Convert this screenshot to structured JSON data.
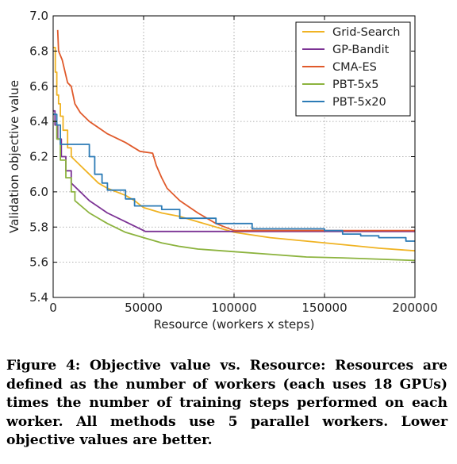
{
  "chart_data": {
    "type": "line",
    "xlabel": "Resource (workers x steps)",
    "ylabel": "Validation objective value",
    "xlim": [
      0,
      200000
    ],
    "ylim": [
      5.4,
      7.0
    ],
    "xticks": [
      0,
      50000,
      100000,
      150000,
      200000
    ],
    "xtick_labels": [
      "0",
      "50000",
      "100000",
      "150000",
      "200000"
    ],
    "yticks": [
      5.4,
      5.6,
      5.8,
      6.0,
      6.2,
      6.4,
      6.6,
      6.8,
      7.0
    ],
    "ytick_labels": [
      "5.4",
      "5.6",
      "5.8",
      "6.0",
      "6.2",
      "6.4",
      "6.6",
      "6.8",
      "7.0"
    ],
    "grid": true,
    "legend_position": "top-right",
    "series": [
      {
        "name": "Grid-Search",
        "color": "#f0b323",
        "points": [
          [
            0,
            6.82
          ],
          [
            1200,
            6.82
          ],
          [
            1200,
            6.68
          ],
          [
            2000,
            6.68
          ],
          [
            2000,
            6.55
          ],
          [
            3000,
            6.55
          ],
          [
            3000,
            6.5
          ],
          [
            4000,
            6.5
          ],
          [
            4000,
            6.43
          ],
          [
            5500,
            6.43
          ],
          [
            5500,
            6.35
          ],
          [
            8000,
            6.35
          ],
          [
            8000,
            6.25
          ],
          [
            10000,
            6.25
          ],
          [
            10000,
            6.2
          ],
          [
            15000,
            6.15
          ],
          [
            20000,
            6.1
          ],
          [
            25000,
            6.05
          ],
          [
            30000,
            6.02
          ],
          [
            40000,
            5.98
          ],
          [
            45000,
            5.95
          ],
          [
            50000,
            5.91
          ],
          [
            60000,
            5.88
          ],
          [
            70000,
            5.86
          ],
          [
            80000,
            5.83
          ],
          [
            100000,
            5.77
          ],
          [
            120000,
            5.74
          ],
          [
            140000,
            5.72
          ],
          [
            160000,
            5.7
          ],
          [
            180000,
            5.68
          ],
          [
            200000,
            5.665
          ]
        ]
      },
      {
        "name": "GP-Bandit",
        "color": "#7b3294",
        "points": [
          [
            0,
            6.46
          ],
          [
            1000,
            6.46
          ],
          [
            1000,
            6.38
          ],
          [
            2500,
            6.38
          ],
          [
            2500,
            6.3
          ],
          [
            4500,
            6.3
          ],
          [
            4500,
            6.2
          ],
          [
            7000,
            6.2
          ],
          [
            7000,
            6.12
          ],
          [
            10000,
            6.12
          ],
          [
            10000,
            6.05
          ],
          [
            15000,
            6.0
          ],
          [
            20000,
            5.95
          ],
          [
            30000,
            5.88
          ],
          [
            40000,
            5.83
          ],
          [
            50000,
            5.78
          ],
          [
            51000,
            5.775
          ],
          [
            200000,
            5.775
          ]
        ]
      },
      {
        "name": "CMA-ES",
        "color": "#e05a2b",
        "points": [
          [
            2500,
            6.92
          ],
          [
            3000,
            6.8
          ],
          [
            5000,
            6.75
          ],
          [
            8000,
            6.62
          ],
          [
            10000,
            6.6
          ],
          [
            12000,
            6.5
          ],
          [
            15000,
            6.45
          ],
          [
            20000,
            6.4
          ],
          [
            30000,
            6.33
          ],
          [
            40000,
            6.28
          ],
          [
            48000,
            6.23
          ],
          [
            55000,
            6.22
          ],
          [
            57000,
            6.15
          ],
          [
            60000,
            6.08
          ],
          [
            63000,
            6.02
          ],
          [
            70000,
            5.95
          ],
          [
            80000,
            5.88
          ],
          [
            90000,
            5.82
          ],
          [
            95000,
            5.8
          ],
          [
            100000,
            5.78
          ],
          [
            200000,
            5.78
          ]
        ]
      },
      {
        "name": "PBT-5x5",
        "color": "#8cb33e",
        "points": [
          [
            0,
            6.4
          ],
          [
            2000,
            6.4
          ],
          [
            2000,
            6.3
          ],
          [
            4000,
            6.3
          ],
          [
            4000,
            6.18
          ],
          [
            7000,
            6.18
          ],
          [
            7000,
            6.08
          ],
          [
            10000,
            6.08
          ],
          [
            10000,
            6.0
          ],
          [
            12000,
            6.0
          ],
          [
            12000,
            5.95
          ],
          [
            20000,
            5.88
          ],
          [
            30000,
            5.82
          ],
          [
            40000,
            5.77
          ],
          [
            50000,
            5.74
          ],
          [
            60000,
            5.71
          ],
          [
            70000,
            5.69
          ],
          [
            80000,
            5.675
          ],
          [
            100000,
            5.66
          ],
          [
            120000,
            5.645
          ],
          [
            140000,
            5.63
          ],
          [
            160000,
            5.625
          ],
          [
            200000,
            5.61
          ]
        ]
      },
      {
        "name": "PBT-5x20",
        "color": "#2c7bb6",
        "points": [
          [
            0,
            6.44
          ],
          [
            2000,
            6.44
          ],
          [
            2000,
            6.38
          ],
          [
            4000,
            6.38
          ],
          [
            4000,
            6.27
          ],
          [
            20000,
            6.27
          ],
          [
            20000,
            6.2
          ],
          [
            23000,
            6.2
          ],
          [
            23000,
            6.1
          ],
          [
            27000,
            6.1
          ],
          [
            27000,
            6.05
          ],
          [
            30000,
            6.05
          ],
          [
            30000,
            6.01
          ],
          [
            40000,
            6.01
          ],
          [
            40000,
            5.96
          ],
          [
            45000,
            5.96
          ],
          [
            45000,
            5.92
          ],
          [
            60000,
            5.92
          ],
          [
            60000,
            5.9
          ],
          [
            70000,
            5.9
          ],
          [
            70000,
            5.85
          ],
          [
            90000,
            5.85
          ],
          [
            90000,
            5.82
          ],
          [
            110000,
            5.82
          ],
          [
            110000,
            5.79
          ],
          [
            150000,
            5.79
          ],
          [
            150000,
            5.78
          ],
          [
            160000,
            5.78
          ],
          [
            160000,
            5.76
          ],
          [
            170000,
            5.76
          ],
          [
            170000,
            5.75
          ],
          [
            180000,
            5.75
          ],
          [
            180000,
            5.74
          ],
          [
            195000,
            5.74
          ],
          [
            195000,
            5.72
          ],
          [
            200000,
            5.72
          ]
        ]
      }
    ]
  },
  "caption": "Figure 4: Objective value vs. Resource: Resources are defined as the number of workers (each uses 18 GPUs) times the number of training steps performed on each worker. All methods use 5 parallel workers. Lower objective values are better."
}
